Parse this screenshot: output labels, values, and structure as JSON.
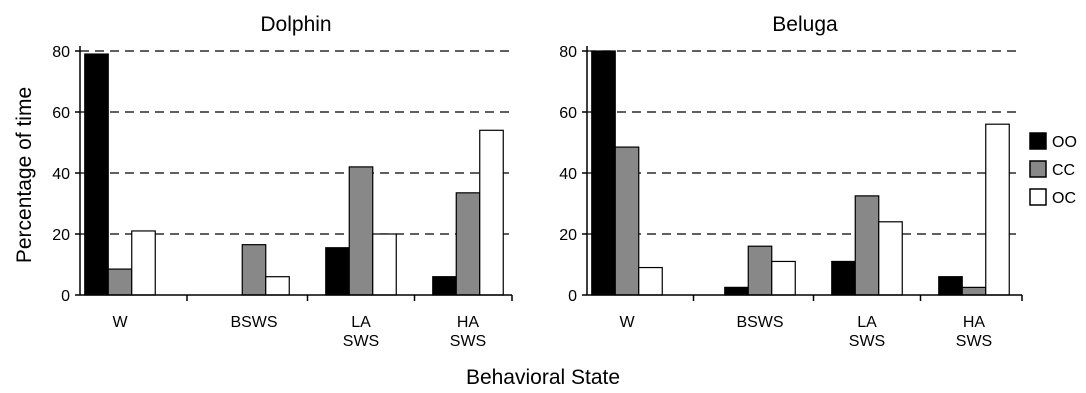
{
  "chart_data": [
    {
      "type": "bar",
      "title": "Dolphin",
      "ylabel": "Percentage of time",
      "xlabel": "Behavioral State",
      "ylim": [
        0,
        80
      ],
      "yticks": [
        0,
        20,
        40,
        60,
        80
      ],
      "grid": "horizontal dashed",
      "categories": [
        [
          "W"
        ],
        [
          "BSWS"
        ],
        [
          "LA",
          "SWS"
        ],
        [
          "HA",
          "SWS"
        ]
      ],
      "series": [
        {
          "name": "OO",
          "values": [
            79,
            0,
            15.5,
            6
          ]
        },
        {
          "name": "CC",
          "values": [
            8.5,
            16.5,
            42,
            33.5
          ]
        },
        {
          "name": "OC",
          "values": [
            21,
            6,
            20,
            54
          ]
        }
      ]
    },
    {
      "type": "bar",
      "title": "Beluga",
      "xlabel": "Behavioral State",
      "ylim": [
        0,
        80
      ],
      "yticks": [
        0,
        20,
        40,
        60,
        80
      ],
      "grid": "horizontal dashed",
      "categories": [
        [
          "W"
        ],
        [
          "BSWS"
        ],
        [
          "LA",
          "SWS"
        ],
        [
          "HA",
          "SWS"
        ]
      ],
      "series": [
        {
          "name": "OO",
          "values": [
            80,
            2.5,
            11,
            6
          ]
        },
        {
          "name": "CC",
          "values": [
            48.5,
            16,
            32.5,
            2.5
          ]
        },
        {
          "name": "OC",
          "values": [
            9,
            11,
            24,
            56
          ]
        }
      ]
    }
  ],
  "legend": {
    "placement": "right",
    "items": [
      {
        "label": "OO",
        "color": "#000000"
      },
      {
        "label": "CC",
        "color": "#888888"
      },
      {
        "label": "OC",
        "color": "#ffffff"
      }
    ]
  },
  "shared_xlabel": "Behavioral State",
  "series_colors": {
    "OO": "#000000",
    "CC": "#888888",
    "OC": "#ffffff"
  }
}
